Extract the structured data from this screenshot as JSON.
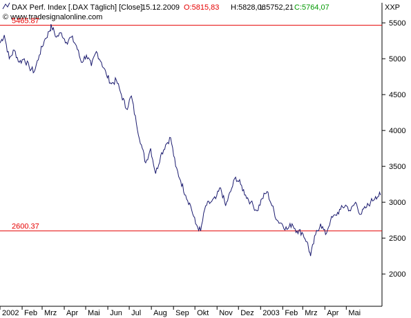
{
  "chart_data": {
    "type": "line",
    "header": {
      "series_label": "DAX Perf. Index [.DAX Täglich] [Close]",
      "date": "15.12.2009",
      "open": "O:5815,83",
      "high": "H:5828,06",
      "low": "L:5752,21",
      "close": "C:5764,07",
      "source": "© www.tradesignalonline.com",
      "symbol": "XXP"
    },
    "ylim": [
      1550,
      5780
    ],
    "y_ticks": [
      2000,
      2500,
      3000,
      3500,
      4000,
      4500,
      5000,
      5500
    ],
    "x_ticks": [
      "2002",
      "Feb",
      "Mrz",
      "Apr",
      "Mai",
      "Jun",
      "Jul",
      "Aug",
      "Sep",
      "Okt",
      "Nov",
      "Dez",
      "2003",
      "Feb",
      "Mrz",
      "Apr",
      "Mai"
    ],
    "levels": [
      {
        "value": 5465.87,
        "label": "5465.87"
      },
      {
        "value": 2600.37,
        "label": "2600.37"
      }
    ],
    "x_start": "2002-01-01",
    "x_end": "2003-06-20",
    "grid": false,
    "colors": {
      "line": "#1a1a6e",
      "level": "#e60000",
      "axis": "#000000"
    },
    "points": [
      [
        "2002-01-01",
        5220
      ],
      [
        "2002-01-07",
        5330
      ],
      [
        "2002-01-14",
        5000
      ],
      [
        "2002-01-21",
        5120
      ],
      [
        "2002-01-28",
        4950
      ],
      [
        "2002-02-04",
        5000
      ],
      [
        "2002-02-11",
        4880
      ],
      [
        "2002-02-18",
        4820
      ],
      [
        "2002-02-25",
        5050
      ],
      [
        "2002-03-04",
        5250
      ],
      [
        "2002-03-11",
        5380
      ],
      [
        "2002-03-14",
        5460
      ],
      [
        "2002-03-21",
        5300
      ],
      [
        "2002-03-28",
        5360
      ],
      [
        "2002-04-04",
        5230
      ],
      [
        "2002-04-11",
        5300
      ],
      [
        "2002-04-18",
        5180
      ],
      [
        "2002-04-25",
        4950
      ],
      [
        "2002-05-02",
        5050
      ],
      [
        "2002-05-09",
        4900
      ],
      [
        "2002-05-16",
        5100
      ],
      [
        "2002-05-23",
        4950
      ],
      [
        "2002-05-30",
        4780
      ],
      [
        "2002-06-06",
        4650
      ],
      [
        "2002-06-13",
        4700
      ],
      [
        "2002-06-20",
        4500
      ],
      [
        "2002-06-27",
        4300
      ],
      [
        "2002-07-04",
        4480
      ],
      [
        "2002-07-11",
        4100
      ],
      [
        "2002-07-18",
        3800
      ],
      [
        "2002-07-24",
        3550
      ],
      [
        "2002-07-31",
        3750
      ],
      [
        "2002-08-07",
        3400
      ],
      [
        "2002-08-14",
        3650
      ],
      [
        "2002-08-21",
        3800
      ],
      [
        "2002-08-28",
        3900
      ],
      [
        "2002-09-04",
        3500
      ],
      [
        "2002-09-11",
        3300
      ],
      [
        "2002-09-18",
        3100
      ],
      [
        "2002-09-25",
        2950
      ],
      [
        "2002-10-02",
        2700
      ],
      [
        "2002-10-09",
        2600
      ],
      [
        "2002-10-16",
        2950
      ],
      [
        "2002-10-23",
        3000
      ],
      [
        "2002-10-30",
        3050
      ],
      [
        "2002-11-06",
        3200
      ],
      [
        "2002-11-13",
        2950
      ],
      [
        "2002-11-20",
        3150
      ],
      [
        "2002-11-27",
        3350
      ],
      [
        "2002-12-04",
        3250
      ],
      [
        "2002-12-11",
        3100
      ],
      [
        "2002-12-18",
        3000
      ],
      [
        "2002-12-27",
        2880
      ],
      [
        "2003-01-03",
        3050
      ],
      [
        "2003-01-10",
        3150
      ],
      [
        "2003-01-17",
        2950
      ],
      [
        "2003-01-24",
        2750
      ],
      [
        "2003-01-31",
        2700
      ],
      [
        "2003-02-07",
        2620
      ],
      [
        "2003-02-14",
        2700
      ],
      [
        "2003-02-21",
        2600
      ],
      [
        "2003-02-28",
        2580
      ],
      [
        "2003-03-07",
        2450
      ],
      [
        "2003-03-12",
        2250
      ],
      [
        "2003-03-19",
        2550
      ],
      [
        "2003-03-26",
        2700
      ],
      [
        "2003-04-02",
        2550
      ],
      [
        "2003-04-09",
        2750
      ],
      [
        "2003-04-16",
        2820
      ],
      [
        "2003-04-23",
        2900
      ],
      [
        "2003-04-30",
        2960
      ],
      [
        "2003-05-07",
        2880
      ],
      [
        "2003-05-14",
        3000
      ],
      [
        "2003-05-21",
        2830
      ],
      [
        "2003-05-28",
        2920
      ],
      [
        "2003-06-04",
        3000
      ],
      [
        "2003-06-11",
        3080
      ],
      [
        "2003-06-18",
        3100
      ]
    ]
  }
}
